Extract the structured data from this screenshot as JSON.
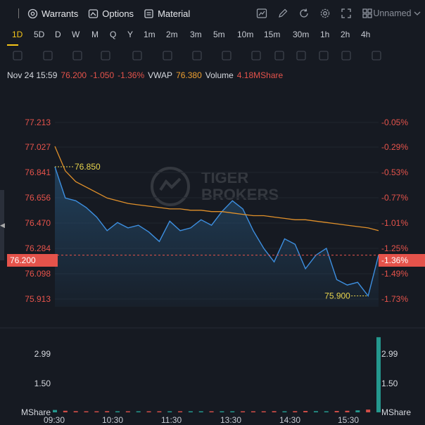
{
  "toolbar": {
    "warrants_label": "Warrants",
    "options_label": "Options",
    "material_label": "Material",
    "workspace_label": "Unnamed",
    "icons": [
      "chart-icon",
      "pencil-icon",
      "refresh-icon",
      "gear-icon",
      "expand-icon",
      "layout-icon"
    ]
  },
  "periods": [
    "1D",
    "5D",
    "D",
    "W",
    "M",
    "Q",
    "Y",
    "1m",
    "2m",
    "3m",
    "5m",
    "10m",
    "15m",
    "30m",
    "1h",
    "2h",
    "4h"
  ],
  "active_period": "1D",
  "drawing_tools": [
    "line-icon",
    "rect-icon",
    "wave-icon",
    "parallel-icon",
    "arrow-icon",
    "text-icon",
    "channel-icon",
    "ruler-icon",
    "pen-icon",
    "lock-icon",
    "eye-icon",
    "magnet-icon",
    "layers-icon",
    "trash-icon"
  ],
  "info": {
    "date": "Nov 24 15:59",
    "price": "76.200",
    "change": "-1.050",
    "change_pct": "-1.36%",
    "vwap_label": "VWAP",
    "vwap": "76.380",
    "volume_label": "Volume",
    "volume": "4.18MShare"
  },
  "watermark": {
    "line1": "TIGER",
    "line2": "BROKERS"
  },
  "price_axis": [
    "77.213",
    "77.027",
    "76.841",
    "76.656",
    "76.470",
    "76.284",
    "76.098",
    "75.913"
  ],
  "pct_axis": [
    "-0.05%",
    "-0.29%",
    "-0.53%",
    "-0.77%",
    "-1.01%",
    "-1.25%",
    "-1.49%",
    "-1.73%"
  ],
  "current_price_tag": "76.200",
  "current_pct_tag": "-1.36%",
  "high_marker": "76.850",
  "low_marker": "75.900",
  "volume_axis": {
    "v1": "2.99",
    "v2": "1.50",
    "unit": "MShare"
  },
  "time_axis": [
    "09:30",
    "10:30",
    "11:30",
    "13:30",
    "14:30",
    "15:30"
  ],
  "colors": {
    "price_line": "#3d8fe0",
    "vwap_line": "#e0902a",
    "down": "#e5534b",
    "up": "#26a69a",
    "active": "#f5c518"
  },
  "chart_data": {
    "type": "line",
    "title": "",
    "x": [
      "09:30",
      "09:40",
      "09:50",
      "10:00",
      "10:10",
      "10:20",
      "10:30",
      "10:40",
      "10:50",
      "11:00",
      "11:10",
      "11:20",
      "11:30",
      "13:00",
      "13:10",
      "13:20",
      "13:30",
      "13:40",
      "13:50",
      "14:00",
      "14:10",
      "14:20",
      "14:30",
      "14:40",
      "14:50",
      "15:00",
      "15:10",
      "15:20",
      "15:30",
      "15:40",
      "15:50",
      "15:59"
    ],
    "series": [
      {
        "name": "",
        "values": [
          76.85,
          76.62,
          76.6,
          76.55,
          76.48,
          76.38,
          76.44,
          76.4,
          76.42,
          76.37,
          76.3,
          76.45,
          76.38,
          76.4,
          76.46,
          76.42,
          76.52,
          76.6,
          76.54,
          76.38,
          76.25,
          76.15,
          76.32,
          76.28,
          76.1,
          76.2,
          76.25,
          76.02,
          75.98,
          76.0,
          75.9,
          76.2
        ]
      },
      {
        "name": "VWAP",
        "values": [
          77.0,
          76.82,
          76.74,
          76.7,
          76.66,
          76.62,
          76.6,
          76.58,
          76.57,
          76.56,
          76.55,
          76.54,
          76.54,
          76.53,
          76.53,
          76.52,
          76.52,
          76.51,
          76.5,
          76.49,
          76.49,
          76.48,
          76.47,
          76.46,
          76.46,
          76.45,
          76.44,
          76.43,
          76.42,
          76.41,
          76.4,
          76.38
        ]
      }
    ],
    "ylim": [
      75.82,
      77.3
    ],
    "volume": [
      0.12,
      0.08,
      0.06,
      0.05,
      0.05,
      0.06,
      0.05,
      0.04,
      0.05,
      0.05,
      0.04,
      0.05,
      0.04,
      0.05,
      0.05,
      0.04,
      0.05,
      0.05,
      0.04,
      0.05,
      0.05,
      0.06,
      0.05,
      0.06,
      0.07,
      0.06,
      0.05,
      0.07,
      0.08,
      0.1,
      0.14,
      3.8
    ]
  }
}
